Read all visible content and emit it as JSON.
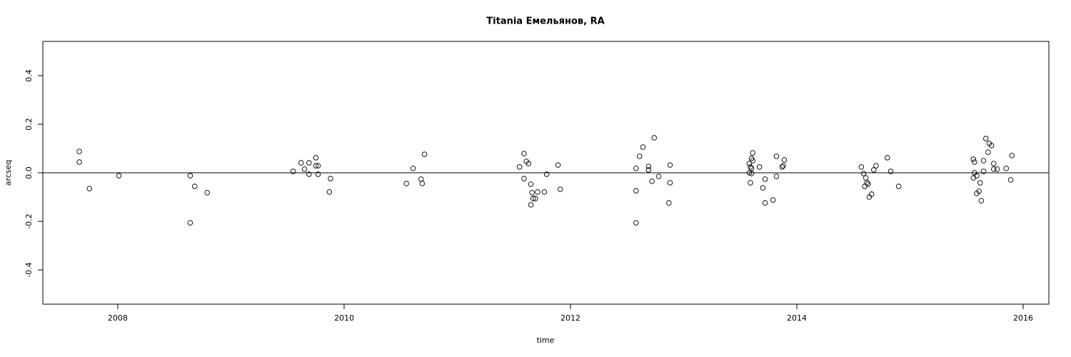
{
  "chart_data": {
    "type": "scatter",
    "title": "Titania Емельянов, RA",
    "x_label": "time",
    "y_label": "arcseq",
    "x": [
      2007.66,
      2007.66,
      2007.75,
      2008.01,
      2008.64,
      2008.68,
      2008.64,
      2008.79,
      2009.55,
      2009.62,
      2009.65,
      2009.69,
      2009.69,
      2009.75,
      2009.75,
      2009.77,
      2009.77,
      2009.88,
      2009.87,
      2010.55,
      2010.61,
      2010.68,
      2010.69,
      2010.71,
      2011.55,
      2011.59,
      2011.59,
      2011.61,
      2011.63,
      2011.65,
      2011.66,
      2011.65,
      2011.67,
      2011.69,
      2011.71,
      2011.77,
      2011.79,
      2011.89,
      2011.91,
      2012.58,
      2012.58,
      2012.58,
      2012.61,
      2012.64,
      2012.69,
      2012.69,
      2012.72,
      2012.74,
      2012.78,
      2012.87,
      2012.88,
      2012.88,
      2013.58,
      2013.59,
      2013.6,
      2013.61,
      2013.61,
      2013.58,
      2013.6,
      2013.59,
      2013.6,
      2013.67,
      2013.7,
      2013.72,
      2013.72,
      2013.79,
      2013.82,
      2013.82,
      2013.87,
      2013.88,
      2013.89,
      2014.57,
      2014.59,
      2014.61,
      2014.6,
      2014.62,
      2014.63,
      2014.64,
      2014.66,
      2014.68,
      2014.7,
      2014.8,
      2014.83,
      2014.9,
      2015.56,
      2015.57,
      2015.56,
      2015.57,
      2015.59,
      2015.59,
      2015.61,
      2015.62,
      2015.63,
      2015.65,
      2015.65,
      2015.67,
      2015.69,
      2015.7,
      2015.72,
      2015.74,
      2015.74,
      2015.77,
      2015.85,
      2015.9,
      2015.89
    ],
    "values": [
      0.088,
      0.044,
      -0.065,
      -0.012,
      -0.012,
      -0.056,
      -0.206,
      -0.082,
      0.006,
      0.041,
      0.015,
      0.041,
      -0.006,
      0.062,
      0.029,
      0.029,
      -0.006,
      -0.024,
      -0.079,
      -0.044,
      0.018,
      -0.026,
      -0.044,
      0.076,
      0.024,
      0.079,
      -0.024,
      0.047,
      0.038,
      -0.047,
      -0.082,
      -0.132,
      -0.106,
      -0.106,
      -0.079,
      -0.079,
      -0.006,
      0.032,
      -0.068,
      0.018,
      -0.074,
      -0.206,
      0.068,
      0.106,
      0.026,
      0.012,
      -0.035,
      0.144,
      -0.015,
      -0.124,
      -0.041,
      0.032,
      0.038,
      0.024,
      0.059,
      0.082,
      0.05,
      0,
      -0.003,
      -0.041,
      0.018,
      0.024,
      -0.062,
      -0.026,
      -0.124,
      -0.112,
      -0.015,
      0.068,
      0.024,
      0.029,
      0.053,
      0.024,
      -0.003,
      -0.021,
      -0.056,
      -0.041,
      -0.047,
      -0.1,
      -0.088,
      0.012,
      0.029,
      0.062,
      0.006,
      -0.056,
      0.056,
      0.044,
      -0.021,
      0,
      -0.012,
      -0.085,
      -0.076,
      -0.041,
      -0.115,
      0.006,
      0.05,
      0.141,
      0.085,
      0.121,
      0.112,
      0.038,
      0.015,
      0.015,
      0.018,
      0.071,
      -0.029
    ],
    "color": "#000000",
    "xlim": [
      2007.338,
      2016.227
    ],
    "ylim": [
      -0.541,
      0.541
    ],
    "xticks": [
      2008,
      2010,
      2012,
      2014,
      2016
    ],
    "yticks": [
      -0.4,
      -0.2,
      {
        "value": 0,
        "label": "0.0"
      },
      0.2,
      0.4
    ],
    "hline": 0
  }
}
